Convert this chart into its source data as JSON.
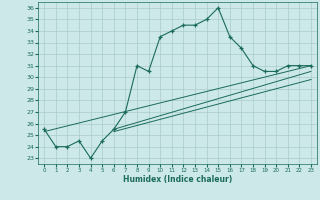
{
  "xlabel": "Humidex (Indice chaleur)",
  "ylabel": "",
  "xlim": [
    -0.5,
    23.5
  ],
  "ylim": [
    22.5,
    36.5
  ],
  "xticks": [
    0,
    1,
    2,
    3,
    4,
    5,
    6,
    7,
    8,
    9,
    10,
    11,
    12,
    13,
    14,
    15,
    16,
    17,
    18,
    19,
    20,
    21,
    22,
    23
  ],
  "yticks": [
    23,
    24,
    25,
    26,
    27,
    28,
    29,
    30,
    31,
    32,
    33,
    34,
    35,
    36
  ],
  "line_color": "#1a6b5a",
  "bg_color": "#cce8e8",
  "grid_color": "#aacccc",
  "series": [
    [
      0,
      25.5
    ],
    [
      1,
      24.0
    ],
    [
      2,
      24.0
    ],
    [
      3,
      24.5
    ],
    [
      4,
      23.0
    ],
    [
      5,
      24.5
    ],
    [
      6,
      25.5
    ],
    [
      7,
      27.0
    ],
    [
      8,
      31.0
    ],
    [
      9,
      30.5
    ],
    [
      10,
      33.5
    ],
    [
      11,
      34.0
    ],
    [
      12,
      34.5
    ],
    [
      13,
      34.5
    ],
    [
      14,
      35.0
    ],
    [
      15,
      36.0
    ],
    [
      16,
      33.5
    ],
    [
      17,
      32.5
    ],
    [
      18,
      31.0
    ],
    [
      19,
      30.5
    ],
    [
      20,
      30.5
    ],
    [
      21,
      31.0
    ],
    [
      22,
      31.0
    ],
    [
      23,
      31.0
    ]
  ],
  "trend_lines": [
    [
      [
        0,
        25.3
      ],
      [
        23,
        31.0
      ]
    ],
    [
      [
        6,
        25.5
      ],
      [
        23,
        30.5
      ]
    ],
    [
      [
        6,
        25.3
      ],
      [
        23,
        29.8
      ]
    ]
  ]
}
